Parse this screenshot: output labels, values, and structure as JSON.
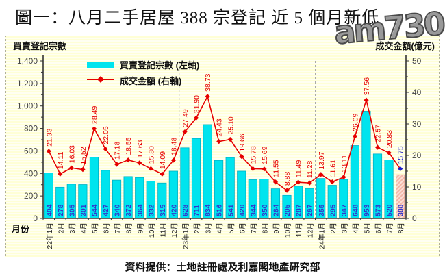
{
  "title": "圖一：八月二手居屋 388 宗登記 近 5 個月新低",
  "watermark": "am730",
  "footer": "資料提供：土地註冊處及利嘉閣地產研究部",
  "chart_data": {
    "type": "bar",
    "subtype": "bar-line-combo",
    "left_axis_title": "買賣登記宗數",
    "right_axis_title": "成交金額(億元)",
    "xlabel": "月份",
    "categories": [
      "22年1月",
      "2月",
      "3月",
      "4月",
      "5月",
      "6月",
      "7月",
      "8月",
      "9月",
      "10月",
      "11月",
      "12月",
      "23年1月",
      "2月",
      "3月",
      "4月",
      "5月",
      "6月",
      "7月",
      "8月",
      "9月",
      "10月",
      "11月",
      "12月",
      "24年1月",
      "2月",
      "3月",
      "4月",
      "5月",
      "6月",
      "7月",
      "8月"
    ],
    "series": [
      {
        "name": "買賣登記宗數",
        "legend": "買賣登記宗數 (左軸)",
        "type": "bar",
        "axis": "left",
        "values": [
          404,
          278,
          305,
          301,
          544,
          427,
          340,
          372,
          364,
          332,
          315,
          420,
          628,
          711,
          834,
          516,
          541,
          420,
          344,
          350,
          264,
          205,
          287,
          267,
          355,
          295,
          347,
          648,
          953,
          573,
          520,
          388
        ]
      },
      {
        "name": "成交金額",
        "legend": "成交金額 (右軸)",
        "type": "line",
        "axis": "right",
        "values": [
          "21.33",
          "14.11",
          "16.03",
          "15.52",
          "28.49",
          "22.05",
          "17.18",
          "18.55",
          "17.63",
          "15.80",
          "14.09",
          "18.48",
          "27.49",
          "31.90",
          "38.73",
          "24.43",
          "25.10",
          "19.66",
          "15.78",
          "15.69",
          "11.55",
          "8.88",
          "11.49",
          "11.28",
          "13.97",
          "11.61",
          "13.11",
          "26.09",
          "37.56",
          "22.57",
          "20.83",
          "15.75"
        ]
      }
    ],
    "left_axis": {
      "min": 0,
      "max": 1400,
      "ticks": [
        "1,400",
        "1,200",
        "1,000",
        "800",
        "600",
        "400",
        "200",
        "0"
      ]
    },
    "right_axis": {
      "min": 0,
      "max": 50,
      "ticks": [
        "50",
        "40",
        "30",
        "20",
        "10",
        "0"
      ]
    },
    "year_separators_after_index": [
      11,
      23
    ],
    "highlight_last_point": true,
    "colors": {
      "bar": "#00E4EE",
      "bar_border": "#00AFC4",
      "bar_last": "#F3B7A7",
      "line": "#E60000",
      "last_point": "#2222CC",
      "bar_label": "#3333CC",
      "axis": "#333333",
      "tick_text": "#444444"
    }
  }
}
